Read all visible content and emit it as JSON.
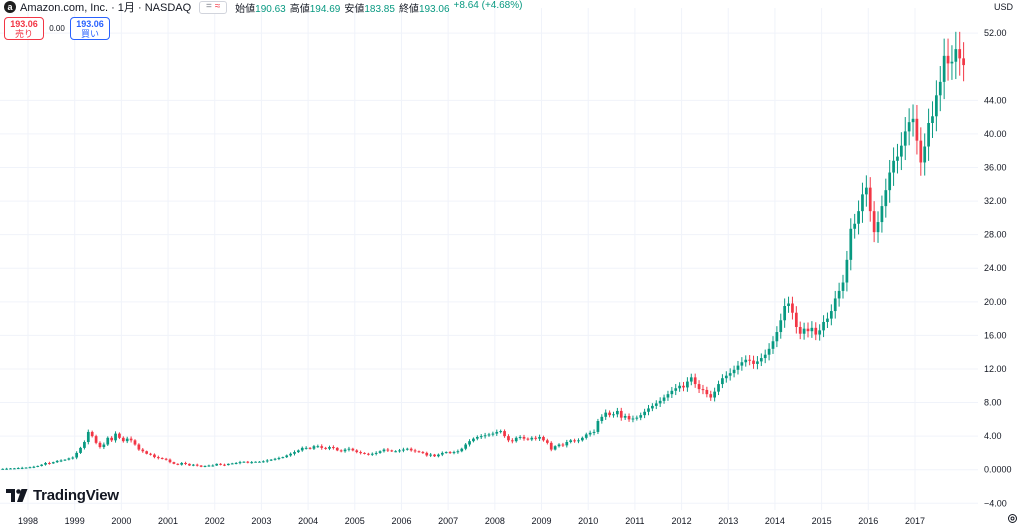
{
  "header": {
    "logo_letter": "a",
    "title": "Amazon.com, Inc. · 1月 · NASDAQ",
    "compare_eq": "=",
    "compare_tilde": "≈",
    "ohlc": [
      {
        "label": "始値",
        "value": "190.63"
      },
      {
        "label": "高値",
        "value": "194.69"
      },
      {
        "label": "安値",
        "value": "183.85"
      },
      {
        "label": "終値",
        "value": "193.06"
      },
      {
        "label": "",
        "value": "+8.64 (+4.68%)"
      }
    ]
  },
  "trade": {
    "sell_price": "193.06",
    "sell_label": "売り",
    "spread": "0.00",
    "buy_price": "193.06",
    "buy_label": "買い"
  },
  "branding": {
    "name": "TradingView"
  },
  "axis": {
    "currency": "USD"
  },
  "colors": {
    "up": "#089981",
    "down": "#f23645",
    "grid": "#f0f3fa"
  },
  "chart_data": {
    "type": "candlestick",
    "y_ticks": [
      "52.00",
      "44.00",
      "40.00",
      "36.00",
      "32.00",
      "28.00",
      "24.00",
      "20.00",
      "16.00",
      "12.00",
      "8.00",
      "4.00",
      "0.0000",
      "−4.00"
    ],
    "y_tick_values": [
      52,
      44,
      40,
      36,
      32,
      28,
      24,
      20,
      16,
      12,
      8,
      4,
      0,
      -4
    ],
    "x_ticks": [
      "1998",
      "1999",
      "2000",
      "2001",
      "2002",
      "2003",
      "2004",
      "2005",
      "2006",
      "2007",
      "2008",
      "2009",
      "2010",
      "2011",
      "2012",
      "2013",
      "2014",
      "2015",
      "2016",
      "2017"
    ],
    "x_tick_values": [
      1998,
      1999,
      2000,
      2001,
      2002,
      2003,
      2004,
      2005,
      2006,
      2007,
      2008,
      2009,
      2010,
      2011,
      2012,
      2013,
      2014,
      2015,
      2016,
      2017
    ],
    "ylim": [
      -4.8,
      55
    ],
    "xlim": [
      1997.4,
      2018.35
    ],
    "grid": true,
    "closes": [
      0.05,
      0.06,
      0.08,
      0.07,
      0.09,
      0.1,
      0.12,
      0.15,
      0.16,
      0.2,
      0.22,
      0.25,
      0.3,
      0.35,
      0.45,
      0.6,
      0.8,
      0.75,
      0.9,
      1.05,
      1.1,
      1.2,
      1.35,
      1.45,
      2.0,
      2.6,
      3.3,
      4.5,
      4.0,
      3.2,
      2.7,
      3.0,
      3.8,
      3.5,
      4.3,
      3.8,
      3.4,
      3.7,
      3.5,
      3.0,
      2.4,
      2.2,
      1.9,
      1.8,
      1.5,
      1.4,
      1.3,
      1.2,
      0.9,
      0.7,
      0.6,
      0.8,
      0.7,
      0.5,
      0.6,
      0.5,
      0.35,
      0.45,
      0.5,
      0.5,
      0.7,
      0.6,
      0.55,
      0.7,
      0.75,
      0.8,
      0.9,
      0.95,
      0.85,
      0.9,
      0.95,
      0.95,
      1.0,
      1.1,
      1.2,
      1.3,
      1.4,
      1.5,
      1.7,
      1.9,
      2.1,
      2.3,
      2.6,
      2.6,
      2.5,
      2.8,
      2.8,
      2.6,
      2.5,
      2.7,
      2.6,
      2.3,
      2.2,
      2.4,
      2.5,
      2.3,
      2.1,
      2.0,
      1.9,
      1.8,
      1.9,
      2.0,
      2.2,
      2.4,
      2.3,
      2.2,
      2.2,
      2.3,
      2.4,
      2.5,
      2.3,
      2.2,
      2.1,
      2.0,
      1.7,
      1.8,
      1.6,
      1.8,
      2.0,
      2.1,
      2.0,
      2.1,
      2.2,
      2.5,
      3.0,
      3.4,
      3.7,
      3.9,
      4.0,
      4.1,
      4.2,
      4.3,
      4.5,
      4.6,
      4.0,
      3.5,
      3.4,
      3.8,
      3.9,
      3.7,
      3.6,
      3.8,
      3.7,
      3.9,
      3.5,
      3.2,
      2.4,
      2.8,
      3.0,
      2.9,
      3.3,
      3.5,
      3.4,
      3.5,
      3.8,
      4.2,
      4.4,
      4.5,
      5.8,
      6.3,
      6.8,
      6.5,
      6.6,
      7.0,
      6.2,
      6.4,
      6.0,
      6.1,
      6.2,
      6.5,
      6.9,
      7.3,
      7.6,
      7.9,
      8.2,
      8.6,
      9.0,
      9.4,
      9.7,
      10.0,
      9.8,
      10.5,
      11.0,
      10.2,
      9.6,
      9.5,
      9.0,
      8.6,
      9.3,
      10.2,
      10.9,
      11.2,
      11.5,
      11.9,
      12.4,
      12.8,
      13.1,
      13.0,
      12.6,
      12.9,
      13.3,
      13.7,
      14.4,
      15.3,
      16.4,
      17.8,
      19.5,
      19.8,
      18.7,
      17.0,
      16.2,
      16.8,
      16.5,
      16.9,
      16.1,
      16.6,
      17.6,
      18.0,
      18.9,
      20.4,
      21.3,
      22.3,
      25.0,
      28.7,
      29.3,
      30.8,
      32.8,
      33.6,
      30.8,
      28.3,
      29.5,
      31.4,
      33.3,
      35.4,
      36.8,
      37.3,
      38.6,
      40.3,
      41.4,
      41.8,
      39.2,
      36.6,
      38.5,
      41.3,
      42.1,
      44.6,
      46.2,
      49.3,
      48.4,
      48.6,
      50.1,
      49.0,
      48.2
    ]
  }
}
